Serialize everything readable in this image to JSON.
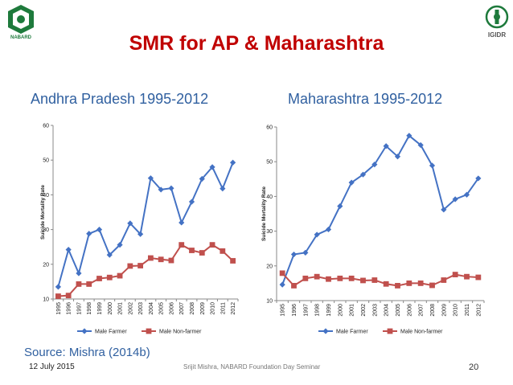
{
  "slide": {
    "title": "SMR for AP & Maharashtra",
    "source": "Source: Mishra (2014b)",
    "footer": {
      "date": "12 July 2015",
      "center": "Srijit Mishra, NABARD Foundation Day Seminar",
      "page": "20"
    },
    "logos": {
      "left": {
        "text": "NABARD",
        "icon": "nabard-logo-icon"
      },
      "right": {
        "text": "IGIDR",
        "icon": "igidr-logo-icon"
      }
    }
  },
  "chart_data": [
    {
      "type": "line",
      "title": "Andhra Pradesh 1995-2012",
      "ylabel": "Suicide Mortality Rate",
      "xlabel": "",
      "ylim": [
        10,
        60
      ],
      "yticks": [
        10,
        20,
        30,
        40,
        50,
        60
      ],
      "grid": false,
      "legend": "bottom",
      "categories": [
        "1995",
        "1996",
        "1997",
        "1998",
        "1999",
        "2000",
        "2001",
        "2002",
        "2003",
        "2004",
        "2005",
        "2006",
        "2007",
        "2008",
        "2009",
        "2010",
        "2011",
        "2012"
      ],
      "series": [
        {
          "name": "Male Farmer",
          "marker": "diamond",
          "color": "#4472c4",
          "values": [
            13.5,
            24.2,
            17.4,
            28.8,
            30.0,
            22.7,
            25.6,
            31.8,
            28.7,
            44.8,
            41.5,
            41.9,
            32.0,
            38.0,
            44.6,
            48.0,
            41.8,
            49.3
          ]
        },
        {
          "name": "Male Non-farmer",
          "marker": "square",
          "color": "#c0504d",
          "values": [
            10.8,
            11.0,
            14.3,
            14.3,
            15.9,
            16.2,
            16.7,
            19.5,
            19.6,
            21.8,
            21.4,
            21.1,
            25.6,
            24.0,
            23.3,
            25.6,
            23.8,
            21.0
          ]
        }
      ]
    },
    {
      "type": "line",
      "title": "Maharashtra 1995-2012",
      "ylabel": "Suicide Mortality Rate",
      "xlabel": "",
      "ylim": [
        10,
        60
      ],
      "yticks": [
        10,
        20,
        30,
        40,
        50,
        60
      ],
      "grid": false,
      "legend": "bottom",
      "categories": [
        "1995",
        "1996",
        "1997",
        "1998",
        "1999",
        "2000",
        "2001",
        "2002",
        "2003",
        "2004",
        "2005",
        "2006",
        "2007",
        "2008",
        "2009",
        "2010",
        "2011",
        "2012"
      ],
      "series": [
        {
          "name": "Male Farmer",
          "marker": "diamond",
          "color": "#4472c4",
          "values": [
            14.6,
            23.3,
            23.8,
            29.0,
            30.5,
            37.2,
            44.0,
            46.3,
            49.2,
            54.5,
            51.5,
            57.5,
            54.8,
            48.9,
            36.2,
            39.2,
            40.5,
            45.2
          ]
        },
        {
          "name": "Male Non-farmer",
          "marker": "square",
          "color": "#c0504d",
          "values": [
            17.9,
            14.3,
            16.4,
            16.9,
            16.2,
            16.4,
            16.4,
            15.8,
            15.9,
            14.8,
            14.3,
            15.0,
            15.0,
            14.4,
            15.9,
            17.5,
            16.9,
            16.7
          ]
        }
      ]
    }
  ]
}
